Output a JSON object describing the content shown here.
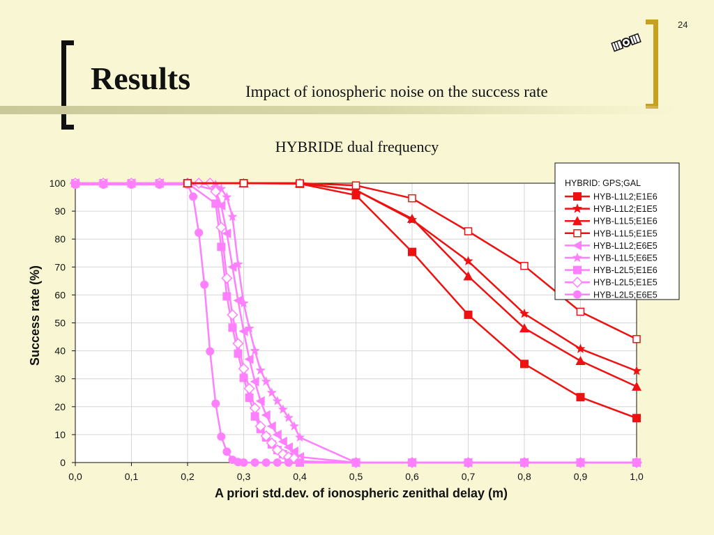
{
  "slide": {
    "number": "24",
    "title": "Results",
    "subtitle": "Impact of  ionospheric noise on the success rate",
    "chart_heading": "HYBRIDE dual frequency"
  },
  "icons": {
    "logo": "satellite-icon"
  },
  "colors": {
    "red": "#ee1111",
    "pink": "#ff80ff",
    "background": "#f9f7d3",
    "gold": "#c8a020"
  },
  "chart_data": {
    "type": "line",
    "xlabel": "A priori std.dev. of ionospheric zenithal delay (m)",
    "ylabel": "Success rate (%)",
    "xlim": [
      0.0,
      1.0
    ],
    "ylim": [
      0,
      100
    ],
    "x_ticks": [
      "0,0",
      "0,1",
      "0,2",
      "0,3",
      "0,4",
      "0,5",
      "0,6",
      "0,7",
      "0,8",
      "0,9",
      "1,0"
    ],
    "y_ticks": [
      "0",
      "10",
      "20",
      "30",
      "40",
      "50",
      "60",
      "70",
      "80",
      "90",
      "100"
    ],
    "grid": true,
    "legend_title": "HYBRID:  GPS;GAL",
    "legend_position": "top-right",
    "series": [
      {
        "name": "HYB-L1L2;E1E6",
        "color": "#ee1111",
        "marker": "square-filled",
        "x": [
          0.2,
          0.3,
          0.4,
          0.5,
          0.6,
          0.7,
          0.8,
          0.9,
          1.0
        ],
        "y": [
          100,
          100,
          99.8,
          95.7,
          75.4,
          52.9,
          35.3,
          23.4,
          15.9
        ]
      },
      {
        "name": "HYB-L1L2;E1E5",
        "color": "#ee1111",
        "marker": "star",
        "x": [
          0.2,
          0.3,
          0.4,
          0.5,
          0.6,
          0.7,
          0.8,
          0.9,
          1.0
        ],
        "y": [
          100,
          100,
          100,
          97.5,
          86.9,
          72.1,
          53.3,
          40.7,
          32.8
        ]
      },
      {
        "name": "HYB-L1L5;E1E6",
        "color": "#ee1111",
        "marker": "triangle-filled",
        "x": [
          0.2,
          0.3,
          0.4,
          0.5,
          0.6,
          0.7,
          0.8,
          0.9,
          1.0
        ],
        "y": [
          100,
          100,
          100,
          97.5,
          87.3,
          66.7,
          48.1,
          36.4,
          27.2
        ]
      },
      {
        "name": "HYB-L1L5;E1E5",
        "color": "#ee1111",
        "marker": "square-open",
        "x": [
          0.2,
          0.3,
          0.4,
          0.5,
          0.6,
          0.7,
          0.8,
          0.9,
          1.0
        ],
        "y": [
          100,
          100,
          100,
          99.2,
          94.6,
          82.8,
          70.4,
          54.0,
          44.2
        ]
      },
      {
        "name": "HYB-L1L2;E6E5",
        "color": "#ff80ff",
        "marker": "triangle-left",
        "x": [
          0.0,
          0.05,
          0.1,
          0.15,
          0.2,
          0.25,
          0.26,
          0.27,
          0.28,
          0.29,
          0.3,
          0.31,
          0.32,
          0.33,
          0.34,
          0.35,
          0.36,
          0.37,
          0.38,
          0.39,
          0.4,
          0.5,
          0.6,
          0.7,
          0.8,
          0.9,
          1.0
        ],
        "y": [
          100,
          100,
          100,
          100,
          100,
          97.5,
          92,
          82,
          70,
          58,
          47,
          37,
          29,
          22,
          17,
          13,
          10,
          7.5,
          5.5,
          4,
          2,
          0,
          0,
          0,
          0,
          0,
          0
        ]
      },
      {
        "name": "HYB-L1L5;E6E5",
        "color": "#ff80ff",
        "marker": "star",
        "x": [
          0.0,
          0.05,
          0.1,
          0.15,
          0.2,
          0.25,
          0.26,
          0.27,
          0.28,
          0.29,
          0.3,
          0.31,
          0.32,
          0.33,
          0.34,
          0.35,
          0.36,
          0.37,
          0.38,
          0.39,
          0.4,
          0.5,
          0.6,
          0.7,
          0.8,
          0.9,
          1.0
        ],
        "y": [
          100,
          100,
          100,
          100,
          100,
          99.5,
          98,
          95,
          88,
          71,
          57,
          48,
          40,
          33,
          29,
          25,
          22,
          19,
          16,
          13,
          9,
          0,
          0,
          0,
          0,
          0,
          0
        ]
      },
      {
        "name": "HYB-L2L5;E1E6",
        "color": "#ff80ff",
        "marker": "square-filled",
        "x": [
          0.0,
          0.05,
          0.1,
          0.15,
          0.2,
          0.25,
          0.26,
          0.27,
          0.28,
          0.29,
          0.3,
          0.31,
          0.32,
          0.33,
          0.34,
          0.35,
          0.36,
          0.37,
          0.38,
          0.39,
          0.4,
          0.5,
          0.6,
          0.7,
          0.8,
          0.9,
          1.0
        ],
        "y": [
          100,
          100,
          100,
          100,
          100,
          92.7,
          77.2,
          59.5,
          48.3,
          39,
          30.3,
          23.2,
          16.5,
          12,
          9,
          6.5,
          4.5,
          3,
          2,
          1,
          0,
          0,
          0,
          0,
          0,
          0,
          0
        ]
      },
      {
        "name": "HYB-L2L5;E1E5",
        "color": "#ff80ff",
        "marker": "diamond-open",
        "x": [
          0.0,
          0.05,
          0.1,
          0.15,
          0.2,
          0.22,
          0.24,
          0.25,
          0.26,
          0.27,
          0.28,
          0.29,
          0.3,
          0.31,
          0.32,
          0.33,
          0.34,
          0.35,
          0.36,
          0.37,
          0.38,
          0.39,
          0.4,
          0.5,
          0.6,
          0.7,
          0.8,
          0.9,
          1.0
        ],
        "y": [
          100,
          100,
          100,
          100,
          100,
          100,
          100,
          97,
          84.2,
          66,
          52.9,
          42.6,
          33.6,
          26.5,
          19.5,
          13,
          9.5,
          7,
          4.5,
          3,
          2,
          1.5,
          0.5,
          0,
          0,
          0,
          0,
          0,
          0
        ]
      },
      {
        "name": "HYB-L2L5;E6E5",
        "color": "#ff80ff",
        "marker": "circle-filled",
        "x": [
          0.0,
          0.05,
          0.1,
          0.15,
          0.2,
          0.21,
          0.22,
          0.23,
          0.24,
          0.25,
          0.26,
          0.27,
          0.28,
          0.29,
          0.3,
          0.32,
          0.34,
          0.36,
          0.38,
          0.4,
          0.5,
          0.6,
          0.7,
          0.8,
          0.9,
          1.0
        ],
        "y": [
          99.5,
          99.5,
          99.5,
          99.5,
          99.5,
          95.2,
          82.3,
          63.7,
          39.8,
          21.1,
          9.3,
          3.9,
          1,
          0.2,
          0,
          0,
          0,
          0,
          0,
          0,
          0,
          0,
          0,
          0,
          0,
          0
        ]
      }
    ]
  }
}
